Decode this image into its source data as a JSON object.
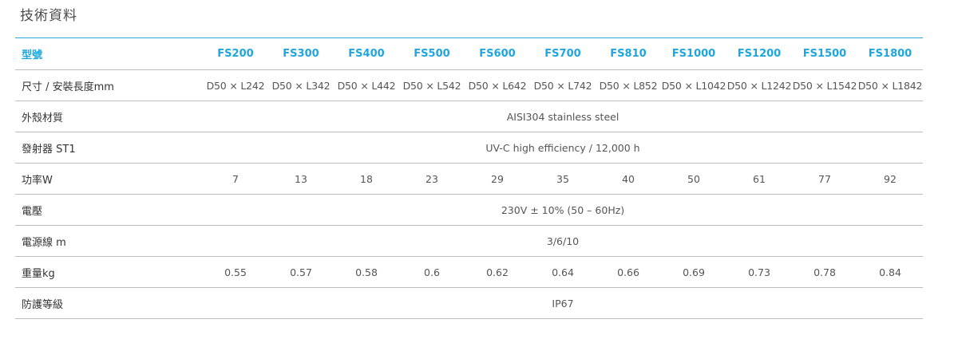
{
  "page": {
    "title": "技術資料"
  },
  "table": {
    "header_label": "型號",
    "models": [
      "FS200",
      "FS300",
      "FS400",
      "FS500",
      "FS600",
      "FS700",
      "FS810",
      "FS1000",
      "FS1200",
      "FS1500",
      "FS1800"
    ],
    "rows": {
      "size": {
        "label": "尺寸 / 安裝長度mm",
        "values": [
          "D50 × L242",
          "D50 × L342",
          "D50 × L442",
          "D50 × L542",
          "D50 × L642",
          "D50 × L742",
          "D50 × L852",
          "D50 × L1042",
          "D50 × L1242",
          "D50 × L1542",
          "D50 × L1842"
        ]
      },
      "housing": {
        "label": "外殼材質",
        "value": "AISI304 stainless steel"
      },
      "emitter": {
        "label": "發射器 ST1",
        "value": "UV-C high efficiency / 12,000 h"
      },
      "power": {
        "label": "功率W",
        "values": [
          "7",
          "13",
          "18",
          "23",
          "29",
          "35",
          "40",
          "50",
          "61",
          "77",
          "92"
        ]
      },
      "voltage": {
        "label": "電壓",
        "value": "230V ± 10% (50 – 60Hz)"
      },
      "cable": {
        "label": "電源線 m",
        "value": "3/6/10"
      },
      "weight": {
        "label": "重量kg",
        "values": [
          "0.55",
          "0.57",
          "0.58",
          "0.6",
          "0.62",
          "0.64",
          "0.66",
          "0.69",
          "0.73",
          "0.78",
          "0.84"
        ]
      },
      "protection": {
        "label": "防護等級",
        "value": "IP67"
      }
    }
  }
}
